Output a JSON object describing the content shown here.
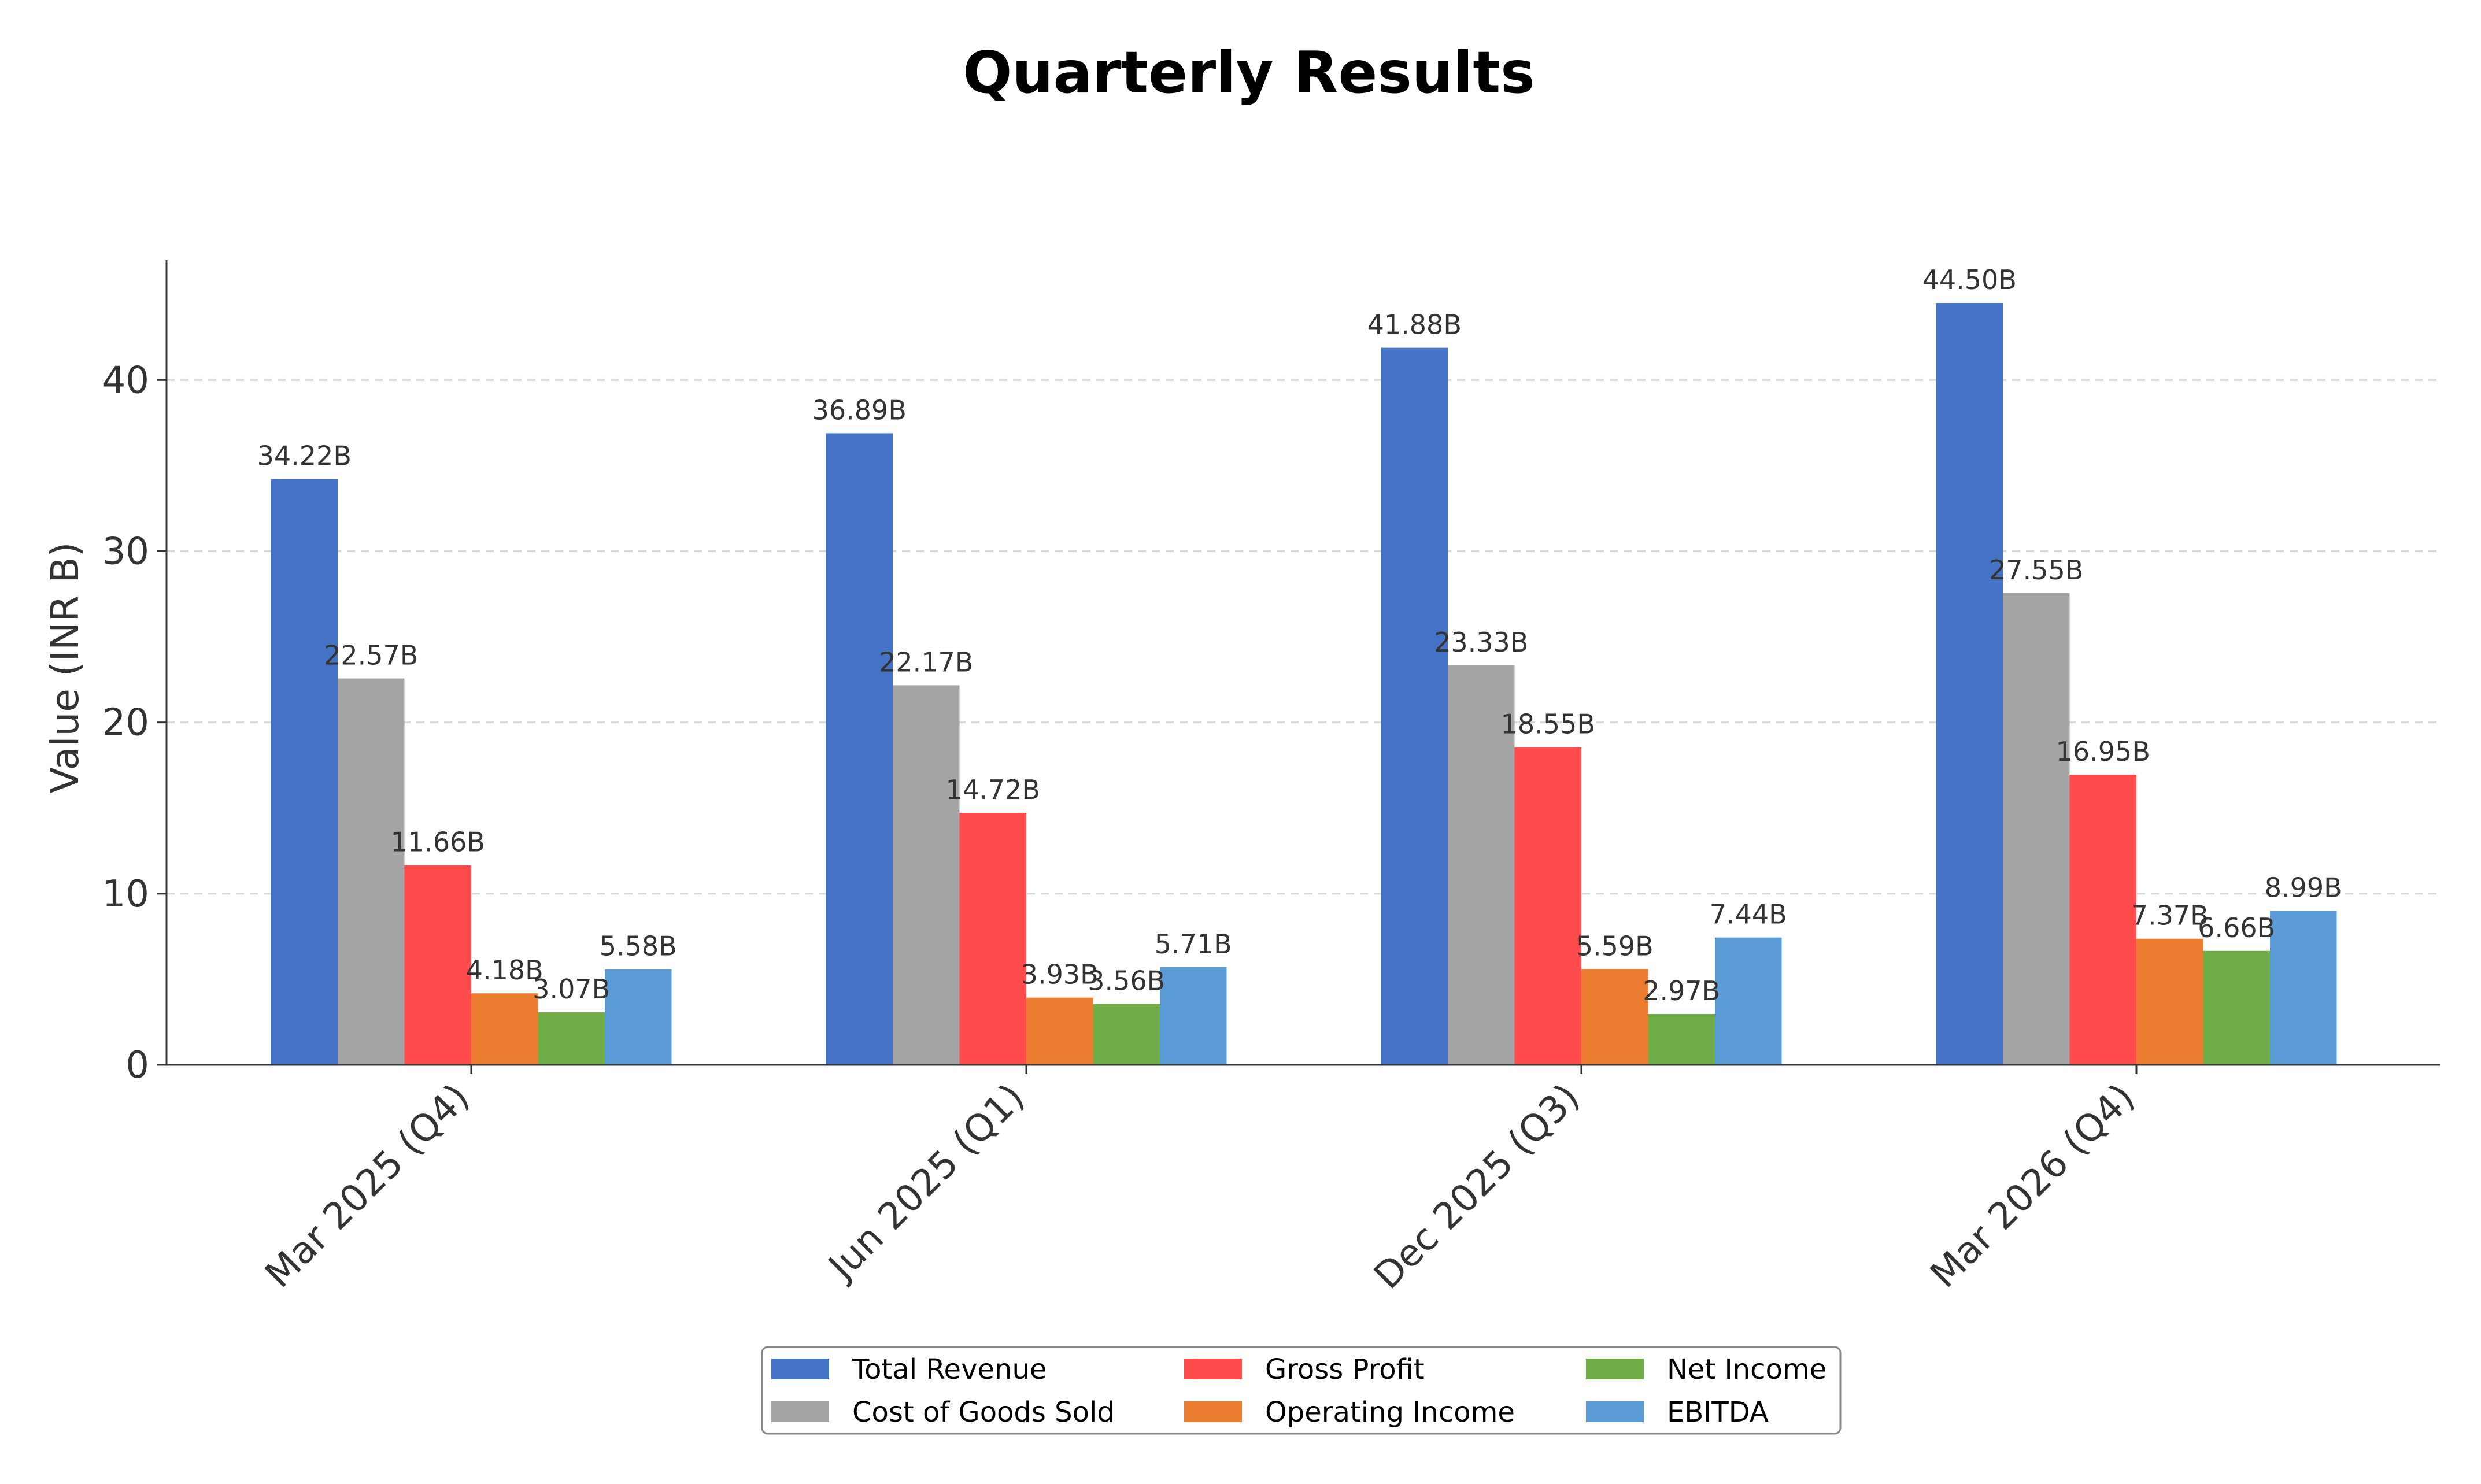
{
  "chart_data": {
    "type": "bar",
    "title": "Quarterly Results",
    "xlabel": "",
    "ylabel": "Value (INR B)",
    "ylim": [
      0,
      47
    ],
    "yticks": [
      0,
      10,
      20,
      30,
      40
    ],
    "grid": true,
    "legend_position": "bottom-center",
    "categories": [
      "Mar 2025 (Q4)",
      "Jun 2025 (Q1)",
      "Dec 2025 (Q3)",
      "Mar 2026 (Q4)"
    ],
    "series": [
      {
        "name": "Total Revenue",
        "color": "#4472C4",
        "values": [
          34.22,
          36.89,
          41.88,
          44.5
        ],
        "labels": [
          "34.22B",
          "36.89B",
          "41.88B",
          "44.50B"
        ]
      },
      {
        "name": "Cost of Goods Sold",
        "color": "#A5A5A5",
        "values": [
          22.57,
          22.17,
          23.33,
          27.55
        ],
        "labels": [
          "22.57B",
          "22.17B",
          "23.33B",
          "27.55B"
        ]
      },
      {
        "name": "Gross Profit",
        "color": "#FF4B4B",
        "values": [
          11.66,
          14.72,
          18.55,
          16.95
        ],
        "labels": [
          "11.66B",
          "14.72B",
          "18.55B",
          "16.95B"
        ]
      },
      {
        "name": "Operating Income",
        "color": "#ED7D31",
        "values": [
          4.18,
          3.93,
          5.59,
          7.37
        ],
        "labels": [
          "4.18B",
          "3.93B",
          "5.59B",
          "7.37B"
        ]
      },
      {
        "name": "Net Income",
        "color": "#70AD47",
        "values": [
          3.07,
          3.56,
          2.97,
          6.66
        ],
        "labels": [
          "3.07B",
          "3.56B",
          "2.97B",
          "6.66B"
        ]
      },
      {
        "name": "EBITDA",
        "color": "#5B9BD5",
        "values": [
          5.58,
          5.71,
          7.44,
          8.99
        ],
        "labels": [
          "5.58B",
          "5.71B",
          "7.44B",
          "8.99B"
        ]
      }
    ]
  }
}
